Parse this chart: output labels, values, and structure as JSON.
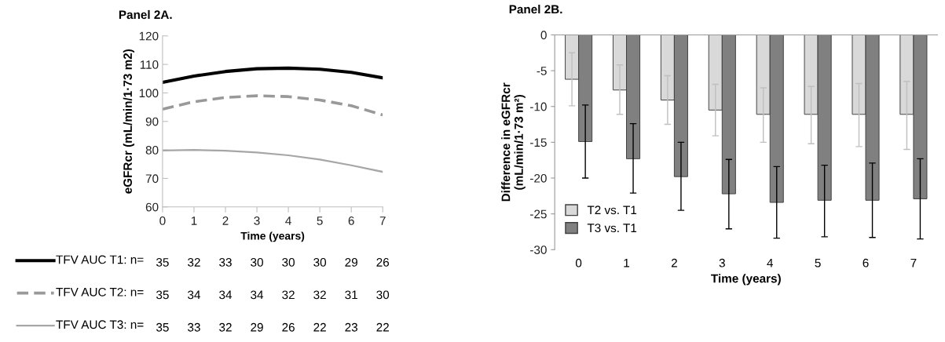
{
  "chart_data": [
    {
      "type": "line",
      "title": "Panel 2A.",
      "xlabel": "Time (years)",
      "ylabel": "eGFRcr (mL/min/1·73 m2)",
      "x": [
        0,
        1,
        2,
        3,
        4,
        5,
        6,
        7
      ],
      "xlim": [
        0,
        7
      ],
      "xticks": [
        0,
        1,
        2,
        3,
        4,
        5,
        6,
        7
      ],
      "ylim": [
        60,
        120
      ],
      "yticks": [
        60,
        70,
        80,
        90,
        100,
        110,
        120
      ],
      "legend": "bottom",
      "series": [
        {
          "name": "TFV AUC T1: n=",
          "color": "#000000",
          "line_style": "solid",
          "values": [
            103.7,
            105.9,
            107.5,
            108.5,
            108.7,
            108.3,
            107.2,
            105.3
          ]
        },
        {
          "name": "TFV AUC T2: n=",
          "color": "#999999",
          "line_style": "dashed",
          "values": [
            94.3,
            96.9,
            98.4,
            99.0,
            98.7,
            97.5,
            95.5,
            92.3
          ]
        },
        {
          "name": "TFV AUC T3: n=",
          "color": "#a6a6a6",
          "line_style": "solid",
          "values": [
            79.8,
            80.0,
            79.7,
            79.1,
            78.1,
            76.6,
            74.6,
            72.3
          ]
        }
      ],
      "annotations": [
        "35",
        "32",
        "33",
        "30",
        "30",
        "30",
        "29",
        "26",
        "35",
        "34",
        "34",
        "34",
        "32",
        "32",
        "31",
        "30",
        "35",
        "33",
        "32",
        "29",
        "26",
        "22",
        "23",
        "22"
      ]
    },
    {
      "type": "bar",
      "title": "Panel 2B.",
      "xlabel": "Time (years)",
      "ylabel": "Difference in eGFRcr\n(mL/min/1·73 m²)",
      "categories": [
        "0",
        "1",
        "2",
        "3",
        "4",
        "5",
        "6",
        "7"
      ],
      "ylim": [
        -30,
        0
      ],
      "yticks": [
        -30,
        -25,
        -20,
        -15,
        -10,
        -5,
        0
      ],
      "legend": "bottom left",
      "series": [
        {
          "name": "T2 vs. T1",
          "color": "#d9d9d9",
          "values": [
            -6.2,
            -7.7,
            -9.1,
            -10.5,
            -11.1,
            -11.1,
            -11.1,
            -11.1
          ],
          "errors": [
            [
              -9.9,
              -2.5
            ],
            [
              -11.1,
              -4.2
            ],
            [
              -12.5,
              -5.7
            ],
            [
              -14.1,
              -6.9
            ],
            [
              -15.0,
              -7.4
            ],
            [
              -15.2,
              -7.2
            ],
            [
              -15.6,
              -6.8
            ],
            [
              -16.0,
              -6.5
            ]
          ]
        },
        {
          "name": "T3 vs. T1",
          "color": "#808080",
          "values": [
            -14.9,
            -17.3,
            -19.8,
            -22.2,
            -23.4,
            -23.1,
            -23.1,
            -22.9
          ],
          "errors": [
            [
              -20.0,
              -9.8
            ],
            [
              -22.1,
              -12.4
            ],
            [
              -24.5,
              -15.0
            ],
            [
              -27.1,
              -17.4
            ],
            [
              -28.4,
              -18.4
            ],
            [
              -28.2,
              -18.2
            ],
            [
              -28.3,
              -17.9
            ],
            [
              -28.5,
              -17.3
            ]
          ]
        }
      ]
    }
  ]
}
